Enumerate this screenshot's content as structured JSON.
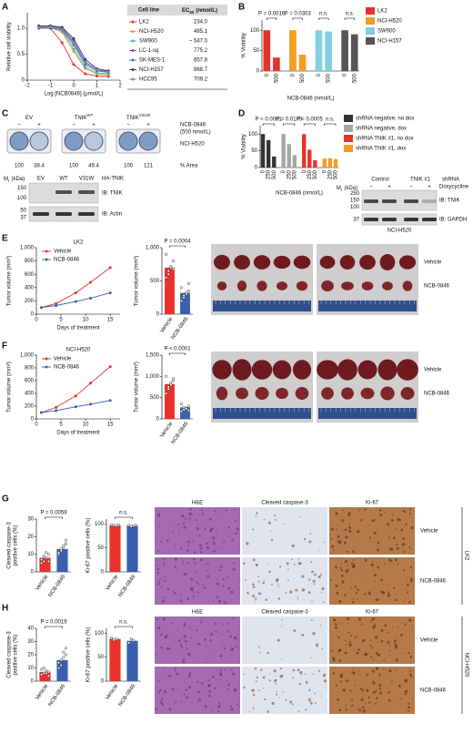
{
  "panel_labels": [
    "A",
    "B",
    "C",
    "D",
    "E",
    "F",
    "G",
    "H"
  ],
  "table": {
    "header": [
      "Cell line",
      {
        "name": "EC",
        "sub": "50",
        "unit": "(nmol/L)"
      }
    ],
    "rows": [
      [
        "LK2",
        "234.0"
      ],
      [
        "NCI-H520",
        "485.1"
      ],
      [
        "SW900",
        "~ 547.0"
      ],
      [
        "LC-1-sq",
        "775.2"
      ],
      [
        "SK-MES-1",
        "657.8"
      ],
      [
        "NCI-H157",
        "868.7"
      ],
      [
        "HCC95",
        "709.2"
      ]
    ]
  },
  "colony": {
    "groups": [
      {
        "name": "EV"
      },
      {
        "name": "TNIK",
        "sup": "WT"
      },
      {
        "name": "TNIK",
        "sup": "V31W"
      }
    ],
    "signs": [
      "−",
      "+",
      "−",
      "+",
      "−",
      "+"
    ],
    "treatment": [
      "NCB-0846",
      "(500 nmol/L)"
    ],
    "cell_line": "NCI-H520",
    "areas": [
      "100",
      "38.4",
      "100",
      "49.4",
      "100",
      "121"
    ],
    "area_label": "% Area"
  },
  "blot_c": {
    "mr": {
      "name": "M",
      "sub": "r",
      "unit": "(kDa)"
    },
    "lanes": [
      "EV",
      "WT",
      "V31W"
    ],
    "tag": "HA-TNIK",
    "blots": [
      {
        "label": "IB: TNIK",
        "markers": [
          "150",
          "100"
        ]
      },
      {
        "label": "IB: Actin",
        "markers": [
          "50",
          "37"
        ]
      }
    ]
  },
  "blot_d": {
    "mr": {
      "name": "M",
      "sub": "r",
      "unit": "(kDa)"
    },
    "groups": [
      "Control",
      "TNIK #1"
    ],
    "group_label": "shRNA",
    "signs": [
      "−",
      "+",
      "−",
      "+"
    ],
    "sign_label": "Doxycycline",
    "blots": [
      {
        "label": "IB: TNIK",
        "markers": [
          "250",
          "150",
          "100"
        ]
      },
      {
        "label": "IB: GAPDH",
        "markers": [
          "37"
        ]
      }
    ],
    "cell_line": "NCI-H520"
  },
  "photos": [
    {
      "rows": [
        "Vehicle",
        "NCB-0846"
      ]
    },
    {
      "rows": [
        "Vehicle",
        "NCB-0846"
      ]
    }
  ],
  "histology": [
    {
      "columns": [
        "H&E",
        "Cleaved caspase-3",
        "Ki-67"
      ],
      "rows": [
        "Vehicle",
        "NCB-0846"
      ],
      "cell_line": "LK2"
    },
    {
      "columns": [
        "H&E",
        "Cleaved caspase-3",
        "Ki-67"
      ],
      "rows": [
        "Vehicle",
        "NCB-0846"
      ],
      "cell_line": "NCI-H520"
    }
  ],
  "chart_data": [
    {
      "type": "line",
      "xlabel": "Log [NCB0846] (μmol/L)",
      "ylabel": "Relative cell viability",
      "x": [
        -1.5,
        -1,
        -0.5,
        0,
        0.5,
        1,
        1.5
      ],
      "xlim": [
        -2,
        2
      ],
      "xticks": [
        -2,
        -1,
        0,
        1,
        2
      ],
      "ylim": [
        0,
        1.3
      ],
      "yticks": [
        0,
        0.5,
        {
          "value": 1,
          "label": "1.0"
        }
      ],
      "series": [
        {
          "color": "#e8322b",
          "values": [
            1.02,
            1.0,
            0.72,
            0.3,
            0.12,
            0.08,
            0.07
          ]
        },
        {
          "color": "#f39c1f",
          "values": [
            1.03,
            1.02,
            0.92,
            0.55,
            0.22,
            0.12,
            0.1
          ]
        },
        {
          "color": "#3bb8d0",
          "values": [
            1.02,
            1.03,
            0.95,
            0.6,
            0.25,
            0.14,
            0.12
          ]
        },
        {
          "color": "#8e44ad",
          "values": [
            1.05,
            1.04,
            1.0,
            0.75,
            0.35,
            0.2,
            0.17
          ]
        },
        {
          "color": "#3a6fc4",
          "values": [
            1.0,
            1.0,
            0.97,
            0.68,
            0.3,
            0.18,
            0.15
          ]
        },
        {
          "color": "#2c3e6b",
          "values": [
            1.04,
            1.05,
            1.02,
            0.8,
            0.4,
            0.22,
            0.18
          ]
        },
        {
          "color": "#8a8a8a",
          "values": [
            1.02,
            1.03,
            0.98,
            0.72,
            0.33,
            0.2,
            0.16
          ]
        }
      ]
    },
    {
      "type": "grouped_bar",
      "ylabel": "% Viability",
      "xlabel": "NCB-0846 (nmol/L)",
      "categories": [
        "0",
        "500"
      ],
      "ylim": [
        0,
        125
      ],
      "yticks": [
        0,
        50,
        100
      ],
      "series": [
        {
          "name": "LK2",
          "color": "#e8322b",
          "values": [
            100,
            33
          ]
        },
        {
          "name": "NCI-H520",
          "color": "#f39c1f",
          "values": [
            100,
            40
          ]
        },
        {
          "name": "SW900",
          "color": "#7fd0e3",
          "values": [
            100,
            97
          ]
        },
        {
          "name": "NCI-H157",
          "color": "#555555",
          "values": [
            100,
            90
          ]
        }
      ],
      "annotations": [
        "P = 0.0016",
        "P = 0.0303",
        "n.s.",
        "n.s."
      ],
      "legend": "right"
    },
    {
      "type": "grouped_bar",
      "ylabel": "% Viability",
      "xlabel": "NCB-0846 (nmol/L)",
      "categories": [
        "0",
        "250",
        "500"
      ],
      "ylim": [
        0,
        125
      ],
      "yticks": [
        0,
        50,
        100
      ],
      "series": [
        {
          "name": "shRNA negative, no dox",
          "color": "#333333",
          "values": [
            100,
            82,
            33
          ]
        },
        {
          "name": "shRNA negative, dox",
          "color": "#a6a6a6",
          "values": [
            100,
            70,
            37
          ]
        },
        {
          "name": "shRNA TNIK #1, no dox",
          "color": "#e8322b",
          "values": [
            100,
            53,
            22
          ]
        },
        {
          "name": "shRNA TNIK #1, dox",
          "color": "#f39c1f",
          "values": [
            27,
            28,
            25
          ]
        }
      ],
      "annotations": [
        "P < 0.0001",
        "P = 0.0179",
        "P = 0.0005",
        "n.s."
      ],
      "legend": "right"
    },
    {
      "type": "line",
      "title": "LK2",
      "xlabel": "Days of treatment",
      "ylabel": "Tumor volume (mm³)",
      "x": [
        1,
        4,
        8,
        11,
        15
      ],
      "xlim": [
        0,
        17
      ],
      "xticks": [
        0,
        5,
        10,
        15
      ],
      "ylim": [
        0,
        1000
      ],
      "yticks": [
        0,
        200,
        400,
        600,
        800,
        {
          "value": 1000,
          "label": "1,000"
        }
      ],
      "series": [
        {
          "name": "Vehicle",
          "color": "#e8322b",
          "values": [
            100,
            160,
            320,
            480,
            700
          ]
        },
        {
          "name": "NCB-0846",
          "color": "#3a5fb0",
          "values": [
            100,
            130,
            190,
            240,
            320
          ]
        }
      ],
      "legend": "upper-left"
    },
    {
      "type": "bar",
      "ylabel": "Tumor volume (mm³)",
      "categories": [
        "Vehicle",
        "NCB-0846"
      ],
      "values": [
        700,
        320
      ],
      "colors": [
        "#e8322b",
        "#3a5fb0"
      ],
      "points": [
        [
          550,
          600,
          700,
          800,
          900,
          650,
          720,
          680
        ],
        [
          200,
          250,
          300,
          350,
          400,
          280,
          320,
          460
        ]
      ],
      "ylim": [
        0,
        1000
      ],
      "yticks": [
        0,
        500,
        {
          "value": 1000,
          "label": "1,000"
        }
      ],
      "annotation": "P = 0.0004"
    },
    {
      "type": "line",
      "title": "NCI-H520",
      "xlabel": "Days of treatment",
      "ylabel": "Tumor volume (mm³)",
      "x": [
        1,
        4,
        8,
        11,
        15
      ],
      "xlim": [
        0,
        17
      ],
      "xticks": [
        0,
        5,
        10,
        15
      ],
      "ylim": [
        0,
        1000
      ],
      "yticks": [
        0,
        200,
        400,
        600,
        800,
        {
          "value": 1000,
          "label": "1,000"
        }
      ],
      "series": [
        {
          "name": "Vehicle",
          "color": "#e8322b",
          "values": [
            100,
            180,
            360,
            560,
            820
          ]
        },
        {
          "name": "NCB-0846",
          "color": "#3a5fb0",
          "values": [
            100,
            130,
            190,
            230,
            290
          ]
        }
      ],
      "legend": "upper-left"
    },
    {
      "type": "bar",
      "ylabel": "Tumor volume (mm³)",
      "categories": [
        "Vehicle",
        "NCB-0846"
      ],
      "values": [
        820,
        270
      ],
      "colors": [
        "#e8322b",
        "#3a5fb0"
      ],
      "points": [
        [
          600,
          700,
          800,
          900,
          1000,
          750,
          850,
          950
        ],
        [
          180,
          220,
          250,
          300,
          350,
          270,
          240,
          200
        ]
      ],
      "ylim": [
        0,
        1500
      ],
      "yticks": [
        0,
        500,
        {
          "value": 1000,
          "label": "1,000"
        },
        {
          "value": 1500,
          "label": "1,500"
        }
      ],
      "annotation": "P < 0.0001"
    },
    {
      "type": "bar",
      "ylabel": [
        "Cleaved caspase-3",
        "positive cells (%)"
      ],
      "categories": [
        "Vehicle",
        "NCB-0846"
      ],
      "values": [
        8,
        13
      ],
      "colors": [
        "#e8322b",
        "#3a5fb0"
      ],
      "points": [
        [
          5,
          6,
          8,
          10,
          7,
          9,
          11,
          6
        ],
        [
          10,
          12,
          14,
          16,
          11,
          13,
          15,
          18
        ]
      ],
      "ylim": [
        0,
        30
      ],
      "yticks": [
        0,
        10,
        20,
        30
      ],
      "annotation": "P = 0.0059"
    },
    {
      "type": "bar",
      "ylabel": "Ki-67 positive cells (%)",
      "categories": [
        "Vehicle",
        "NCB-0846"
      ],
      "values": [
        97,
        96
      ],
      "colors": [
        "#e8322b",
        "#3a5fb0"
      ],
      "points": [
        [
          98,
          97,
          96,
          98
        ],
        [
          97,
          95,
          96,
          97
        ]
      ],
      "ylim": [
        0,
        110
      ],
      "yticks": [
        0,
        50,
        100
      ],
      "annotation": "n.s."
    },
    {
      "type": "bar",
      "ylabel": [
        "Cleaved caspase-3",
        "positive cells (%)"
      ],
      "categories": [
        "Vehicle",
        "NCB-0846"
      ],
      "values": [
        7,
        16
      ],
      "colors": [
        "#e8322b",
        "#3a5fb0"
      ],
      "points": [
        [
          5,
          6,
          8,
          7,
          9,
          10,
          6,
          4
        ],
        [
          10,
          12,
          18,
          20,
          14,
          16,
          22,
          25
        ]
      ],
      "ylim": [
        0,
        40
      ],
      "yticks": [
        0,
        10,
        20,
        30,
        40
      ],
      "annotation": "P = 0.0019"
    },
    {
      "type": "bar",
      "ylabel": "Ki-67 positive cells (%)",
      "categories": [
        "Vehicle",
        "NCB-0846"
      ],
      "values": [
        88,
        84
      ],
      "colors": [
        "#e8322b",
        "#3a5fb0"
      ],
      "points": [
        [
          90,
          86,
          88
        ],
        [
          80,
          88,
          85
        ]
      ],
      "ylim": [
        0,
        110
      ],
      "yticks": [
        0,
        50,
        100
      ],
      "annotation": "n.s."
    }
  ]
}
